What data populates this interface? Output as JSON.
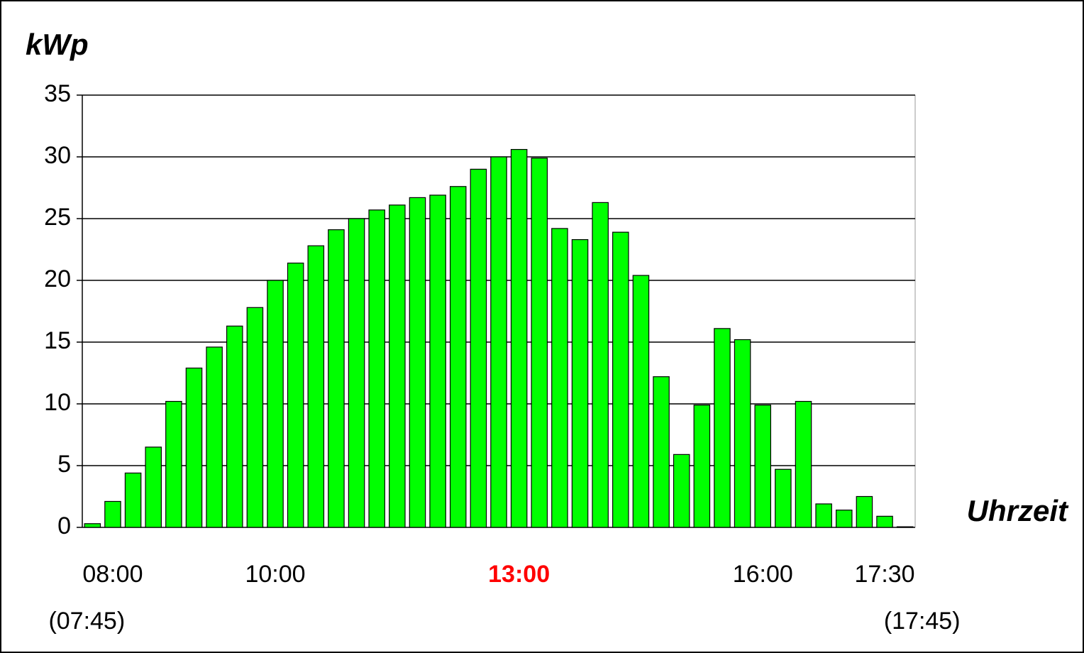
{
  "chart_data": {
    "type": "bar",
    "y_label": "kWp",
    "x_label": "Uhrzeit",
    "categories": [
      null,
      "08:00",
      null,
      null,
      null,
      null,
      null,
      null,
      null,
      "10:00",
      null,
      null,
      null,
      null,
      null,
      null,
      null,
      null,
      null,
      null,
      null,
      "13:00",
      null,
      null,
      null,
      null,
      null,
      null,
      null,
      null,
      null,
      null,
      null,
      "16:00",
      null,
      null,
      null,
      null,
      null,
      "17:30",
      null
    ],
    "secondary_labels": [
      "(07:45)",
      null,
      null,
      null,
      null,
      null,
      null,
      null,
      null,
      null,
      null,
      null,
      null,
      null,
      null,
      null,
      null,
      null,
      null,
      null,
      null,
      null,
      null,
      null,
      null,
      null,
      null,
      null,
      null,
      null,
      null,
      null,
      null,
      null,
      null,
      null,
      null,
      null,
      null,
      null,
      "(17:45)"
    ],
    "values": [
      0.3,
      2.1,
      4.4,
      6.5,
      10.2,
      12.9,
      14.6,
      16.3,
      17.8,
      20.0,
      21.4,
      22.8,
      24.1,
      25.0,
      25.7,
      26.1,
      26.7,
      26.9,
      27.6,
      29.0,
      30.0,
      30.6,
      29.9,
      24.2,
      23.3,
      26.3,
      23.9,
      20.4,
      12.2,
      5.9,
      9.9,
      16.1,
      15.2,
      9.9,
      4.7,
      10.2,
      1.9,
      1.4,
      2.5,
      0.9,
      0.05
    ],
    "color": "#00ff00",
    "highlight": {
      "index": 21,
      "color": "#ff0000"
    },
    "ylim": [
      0,
      35
    ],
    "yticks": [
      0,
      5,
      10,
      15,
      20,
      25,
      30,
      35
    ],
    "grid": true
  }
}
